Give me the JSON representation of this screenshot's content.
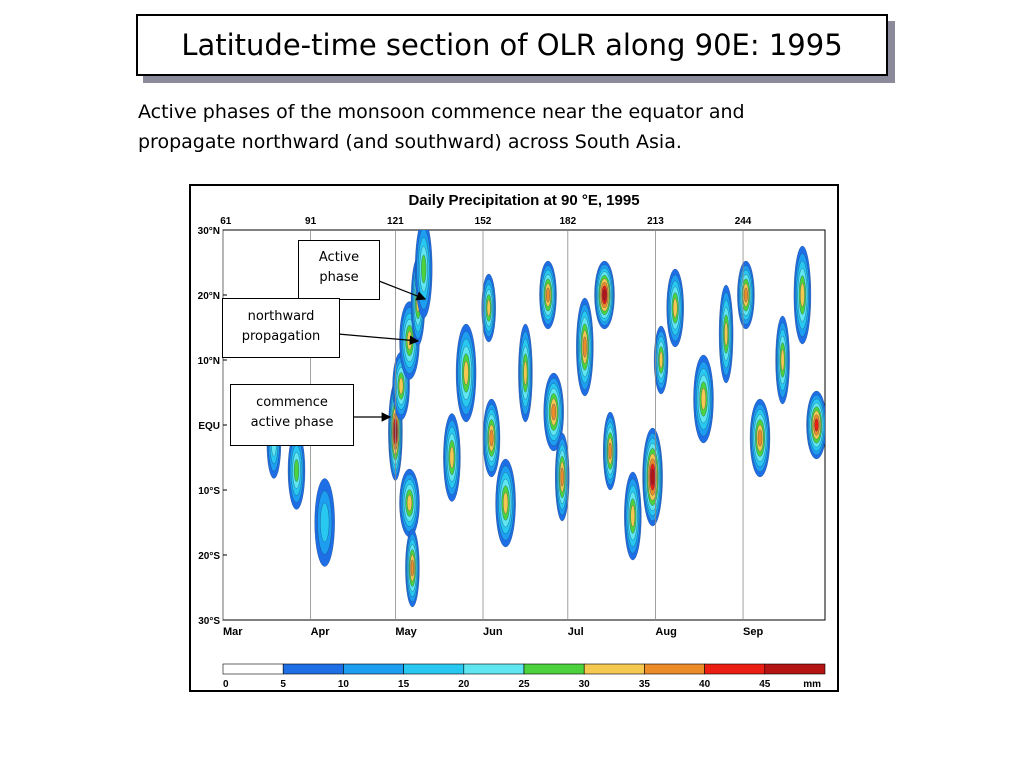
{
  "slide": {
    "title": "Latitude-time section of OLR along 90E: 1995",
    "subtitle_lines": [
      "Active phases of the monsoon commence near the equator and",
      "propagate northward (and southward) across South Asia."
    ]
  },
  "callouts": {
    "active_phase": [
      "Active",
      "phase"
    ],
    "northward_propagation": [
      "northward",
      "propagation"
    ],
    "commence_active_phase": [
      "commence",
      "active phase"
    ]
  },
  "chart_data": {
    "type": "heatmap",
    "title": "Daily Precipitation at 90 °E, 1995",
    "x_range_day_of_year": [
      60,
      273
    ],
    "y_range_latitude": [
      -30,
      30
    ],
    "day_ticks": [
      "61",
      "91",
      "121",
      "152",
      "182",
      "213",
      "244"
    ],
    "day_tick_values": [
      61,
      91,
      121,
      152,
      182,
      213,
      244
    ],
    "month_labels": [
      "Mar",
      "Apr",
      "May",
      "Jun",
      "Jul",
      "Aug",
      "Sep"
    ],
    "lat_labels": [
      "30°N",
      "20°N",
      "10°N",
      "EQU",
      "10°S",
      "20°S",
      "30°S"
    ],
    "lat_values": [
      30,
      20,
      10,
      0,
      -10,
      -20,
      -30
    ],
    "grid": "vertical lines at month starts",
    "colorbar": {
      "unit": "mm",
      "levels": [
        "0",
        "5",
        "10",
        "15",
        "20",
        "25",
        "30",
        "35",
        "40",
        "45"
      ],
      "colors": [
        "#ffffff",
        "#1e6ee6",
        "#1e9ef0",
        "#28c8f0",
        "#5fe6f0",
        "#4cd23c",
        "#f5c850",
        "#eb8c28",
        "#eb1e14",
        "#b41414"
      ]
    },
    "precip_features": [
      {
        "day": 78,
        "lat": -3,
        "peak_mm": 20
      },
      {
        "day": 86,
        "lat": -7,
        "peak_mm": 25
      },
      {
        "day": 96,
        "lat": -15,
        "peak_mm": 18
      },
      {
        "day": 121,
        "lat": -1,
        "peak_mm": 45
      },
      {
        "day": 123,
        "lat": 6,
        "peak_mm": 30
      },
      {
        "day": 126,
        "lat": 13,
        "peak_mm": 30
      },
      {
        "day": 129,
        "lat": 19,
        "peak_mm": 30
      },
      {
        "day": 131,
        "lat": 24,
        "peak_mm": 25
      },
      {
        "day": 126,
        "lat": -12,
        "peak_mm": 30
      },
      {
        "day": 127,
        "lat": -22,
        "peak_mm": 35
      },
      {
        "day": 141,
        "lat": -5,
        "peak_mm": 30
      },
      {
        "day": 146,
        "lat": 8,
        "peak_mm": 30
      },
      {
        "day": 154,
        "lat": 18,
        "peak_mm": 30
      },
      {
        "day": 155,
        "lat": -2,
        "peak_mm": 35
      },
      {
        "day": 160,
        "lat": -12,
        "peak_mm": 30
      },
      {
        "day": 167,
        "lat": 8,
        "peak_mm": 30
      },
      {
        "day": 175,
        "lat": 20,
        "peak_mm": 35
      },
      {
        "day": 177,
        "lat": 2,
        "peak_mm": 35
      },
      {
        "day": 180,
        "lat": -8,
        "peak_mm": 35
      },
      {
        "day": 188,
        "lat": 12,
        "peak_mm": 35
      },
      {
        "day": 195,
        "lat": 20,
        "peak_mm": 45
      },
      {
        "day": 197,
        "lat": -4,
        "peak_mm": 35
      },
      {
        "day": 205,
        "lat": -14,
        "peak_mm": 30
      },
      {
        "day": 212,
        "lat": -8,
        "peak_mm": 45
      },
      {
        "day": 215,
        "lat": 10,
        "peak_mm": 30
      },
      {
        "day": 220,
        "lat": 18,
        "peak_mm": 30
      },
      {
        "day": 230,
        "lat": 4,
        "peak_mm": 30
      },
      {
        "day": 238,
        "lat": 14,
        "peak_mm": 30
      },
      {
        "day": 245,
        "lat": 20,
        "peak_mm": 35
      },
      {
        "day": 250,
        "lat": -2,
        "peak_mm": 35
      },
      {
        "day": 258,
        "lat": 10,
        "peak_mm": 30
      },
      {
        "day": 265,
        "lat": 20,
        "peak_mm": 30
      },
      {
        "day": 270,
        "lat": 0,
        "peak_mm": 40
      }
    ]
  }
}
